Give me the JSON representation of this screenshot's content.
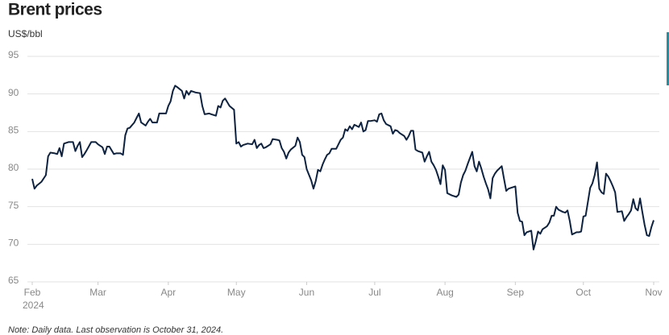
{
  "chart_data": {
    "type": "line",
    "title": "Brent prices",
    "ylabel": "US$/bbl",
    "note": "Note: Daily data. Last observation is October 31, 2024.",
    "x_sub_label": "2024",
    "xlim": [
      0,
      274
    ],
    "xticks": [
      {
        "value": 0,
        "label": "Feb"
      },
      {
        "value": 29,
        "label": "Mar"
      },
      {
        "value": 60,
        "label": "Apr"
      },
      {
        "value": 90,
        "label": "May"
      },
      {
        "value": 121,
        "label": "Jun"
      },
      {
        "value": 151,
        "label": "Jul"
      },
      {
        "value": 182,
        "label": "Aug"
      },
      {
        "value": 213,
        "label": "Sep"
      },
      {
        "value": 243,
        "label": "Oct"
      },
      {
        "value": 274,
        "label": "Nov"
      }
    ],
    "ylim": [
      65,
      95
    ],
    "yticks": [
      65,
      70,
      75,
      80,
      85,
      90,
      95
    ],
    "grid": true,
    "x": [
      0,
      1,
      2,
      4,
      6,
      7,
      8,
      10,
      11,
      12,
      13,
      14,
      16,
      18,
      19,
      20,
      21,
      22,
      23,
      24,
      26,
      28,
      29,
      31,
      32,
      33,
      34,
      36,
      37,
      39,
      40,
      41,
      42,
      43,
      45,
      46,
      47,
      48,
      50,
      51,
      52,
      53,
      55,
      56,
      57,
      59,
      60,
      61,
      62,
      63,
      64,
      66,
      67,
      68,
      69,
      70,
      72,
      74,
      75,
      76,
      78,
      79,
      81,
      82,
      83,
      84,
      85,
      86,
      87,
      89,
      90,
      91,
      92,
      93,
      95,
      97,
      98,
      99,
      100,
      101,
      102,
      103,
      105,
      106,
      108,
      109,
      110,
      111,
      112,
      113,
      114,
      116,
      117,
      118,
      119,
      120,
      121,
      123,
      124,
      125,
      126,
      127,
      128,
      129,
      130,
      131,
      132,
      134,
      135,
      136,
      137,
      138,
      139,
      140,
      141,
      142,
      144,
      145,
      146,
      147,
      148,
      149,
      151,
      152,
      153,
      154,
      155,
      156,
      158,
      159,
      160,
      161,
      162,
      164,
      165,
      166,
      167,
      168,
      169,
      170,
      172,
      173,
      174,
      175,
      176,
      177,
      178,
      179,
      180,
      181,
      182,
      183,
      185,
      187,
      188,
      189,
      190,
      191,
      192,
      193,
      194,
      195,
      196,
      197,
      198,
      199,
      200,
      201,
      202,
      203,
      204,
      205,
      207,
      208,
      209,
      210,
      212,
      213,
      214,
      215,
      216,
      217,
      218,
      220,
      221,
      222,
      223,
      224,
      225,
      227,
      228,
      229,
      230,
      231,
      232,
      234,
      235,
      236,
      237,
      238,
      240,
      241,
      242,
      243,
      244,
      246,
      247,
      248,
      249,
      250,
      251,
      252,
      253,
      254,
      255,
      256,
      257,
      258,
      260,
      261,
      262,
      263,
      264,
      265,
      266,
      267,
      268,
      269,
      270,
      271,
      272,
      273,
      274
    ],
    "series": [
      {
        "name": "Brent",
        "color": "#0d2240",
        "values": [
          78.7,
          77.4,
          77.8,
          78.3,
          79.2,
          81.7,
          82.2,
          82.1,
          82.0,
          82.8,
          81.7,
          83.4,
          83.6,
          83.6,
          82.4,
          83.1,
          83.6,
          81.6,
          82.0,
          82.5,
          83.6,
          83.6,
          83.3,
          82.9,
          82.0,
          83.0,
          83.0,
          82.0,
          82.1,
          82.1,
          81.9,
          84.5,
          85.4,
          85.5,
          86.2,
          86.8,
          87.4,
          86.2,
          85.8,
          86.3,
          86.7,
          86.2,
          86.2,
          87.4,
          87.4,
          87.4,
          88.4,
          89.0,
          90.4,
          91.1,
          90.9,
          90.4,
          89.4,
          90.4,
          89.9,
          90.4,
          90.2,
          90.1,
          88.4,
          87.3,
          87.4,
          87.3,
          87.1,
          88.4,
          88.2,
          89.1,
          89.4,
          88.9,
          88.4,
          87.9,
          83.4,
          83.6,
          83.0,
          83.2,
          83.4,
          83.3,
          83.9,
          82.8,
          83.2,
          83.4,
          82.8,
          82.9,
          83.3,
          84.0,
          83.9,
          83.8,
          82.8,
          82.3,
          81.4,
          82.2,
          82.6,
          83.1,
          84.2,
          83.6,
          81.9,
          81.6,
          80.0,
          78.5,
          77.4,
          78.4,
          79.9,
          79.7,
          80.6,
          81.3,
          81.9,
          82.1,
          82.7,
          82.7,
          83.3,
          83.9,
          84.2,
          85.3,
          85.1,
          85.7,
          85.3,
          85.9,
          85.6,
          86.2,
          85.0,
          85.2,
          86.4,
          86.4,
          86.5,
          86.3,
          87.3,
          87.4,
          86.5,
          86.0,
          85.7,
          84.7,
          85.2,
          85.1,
          84.8,
          84.4,
          83.9,
          84.4,
          85.1,
          85.1,
          82.6,
          82.4,
          82.2,
          81.0,
          81.7,
          82.3,
          81.0,
          80.5,
          79.9,
          79.0,
          78.0,
          80.5,
          79.9,
          76.8,
          76.5,
          76.3,
          76.6,
          78.2,
          79.2,
          79.8,
          80.7,
          81.5,
          82.3,
          80.4,
          79.7,
          81.0,
          80.1,
          79.0,
          78.1,
          77.3,
          76.1,
          78.8,
          79.4,
          79.8,
          80.4,
          78.7,
          77.1,
          77.4,
          77.6,
          77.7,
          74.2,
          73.1,
          73.0,
          71.2,
          71.6,
          71.8,
          69.3,
          70.4,
          71.7,
          71.4,
          72.0,
          72.4,
          72.9,
          73.8,
          73.8,
          75.0,
          74.6,
          74.3,
          74.2,
          74.5,
          73.1,
          71.3,
          71.6,
          71.6,
          71.7,
          73.7,
          73.8,
          77.5,
          78.1,
          79.2,
          80.9,
          77.4,
          76.9,
          76.7,
          79.4,
          79.0,
          78.4,
          77.7,
          76.9,
          74.3,
          74.4,
          73.1,
          73.6,
          74.0,
          74.5,
          76.0,
          74.8,
          74.5,
          76.1,
          74.3,
          72.6,
          71.2,
          71.1,
          72.3,
          73.2
        ]
      }
    ]
  }
}
